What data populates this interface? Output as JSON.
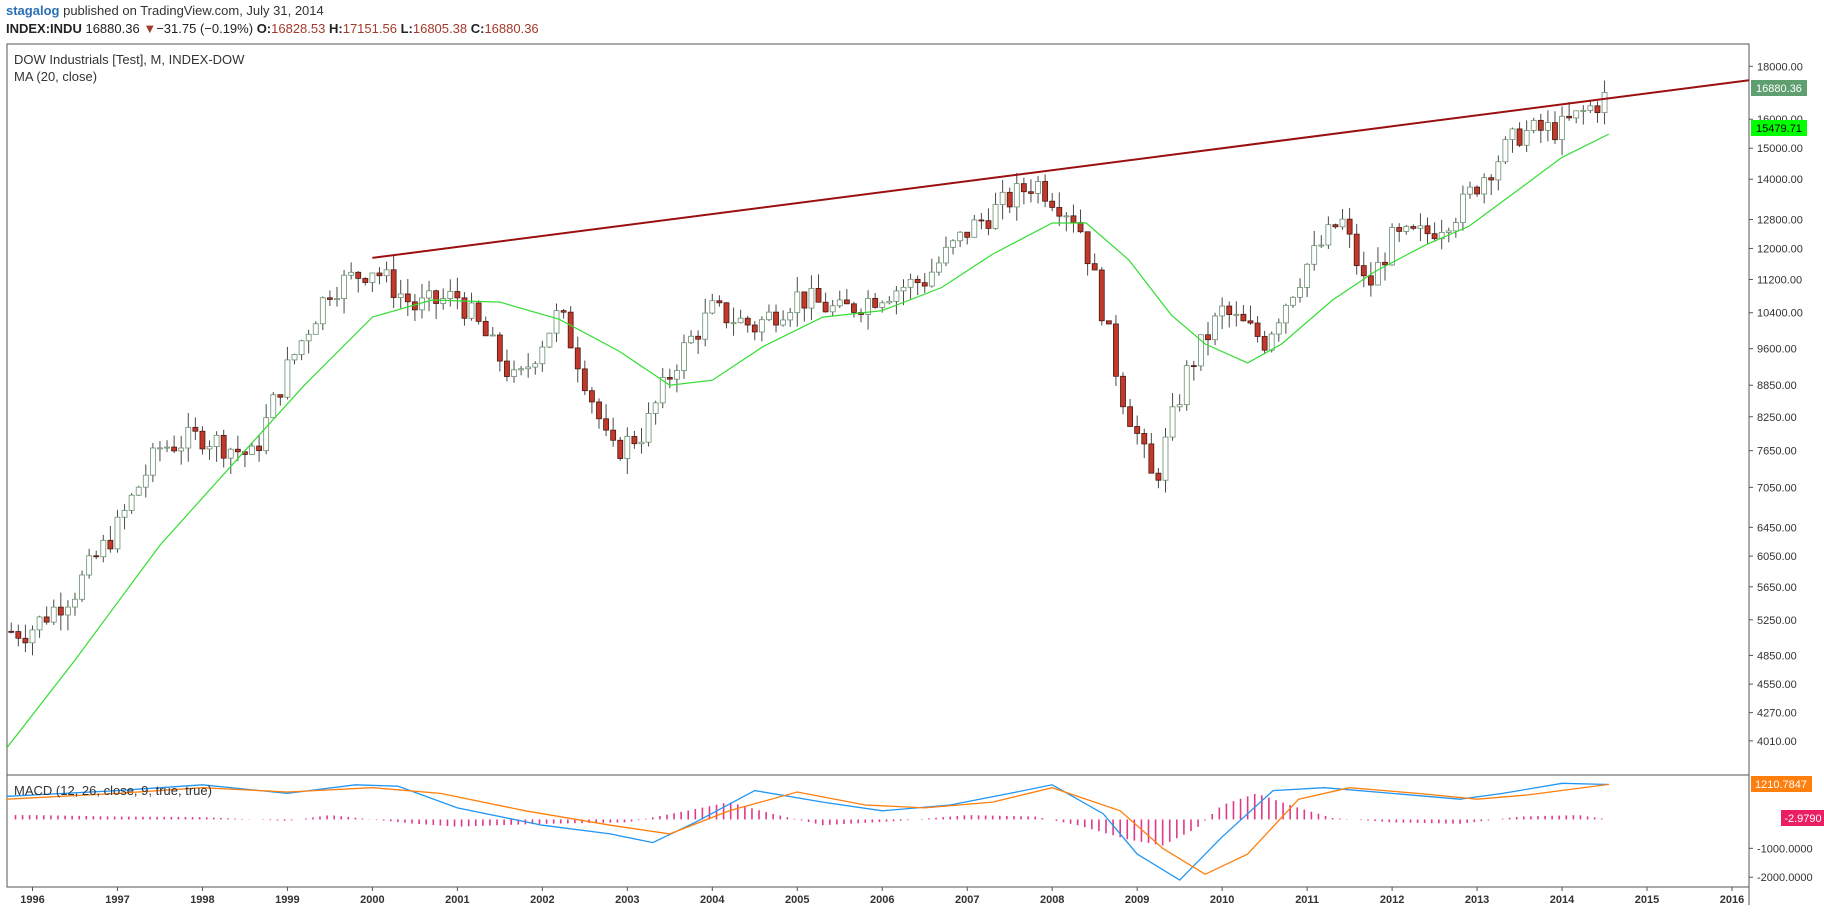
{
  "header": {
    "user": "stagalog",
    "published": "published on TradingView.com, July 31, 2014",
    "symbol": "INDEX:INDU",
    "last": "16880.36",
    "down_arrow": "▼",
    "change": "−31.75 (−0.19%)",
    "o_label": "O:",
    "o_value": "16828.53",
    "h_label": "H:",
    "h_value": "17151.56",
    "l_label": "L:",
    "l_value": "16805.38",
    "c_label": "C:",
    "c_value": "16880.36"
  },
  "legend": {
    "main": "DOW Industrials [Test], M, INDEX-DOW",
    "ma": "MA (20, close)",
    "macd": "MACD (12, 26, close, 9, true, true)"
  },
  "badges": {
    "last_price": "16880.36",
    "ma_value": "15479.71",
    "macd_value": "1210.7847",
    "hist_value": "-2.9790"
  },
  "colors": {
    "up_body": "#ffffff",
    "down_body": "#c0392b",
    "candle_outline": "#6b8f70",
    "ma_line": "#33dd33",
    "trend_line": "#9b0f10",
    "macd_line": "#2196f3",
    "signal_line": "#ff7f0e",
    "histogram": "#e0388b",
    "last_badge": "#5e9e6f",
    "ma_badge": "#00ff00",
    "macd_badge": "#ff7f0e",
    "hist_badge": "#e91e63"
  },
  "chart_data": [
    {
      "type": "candlestick",
      "interval": "M",
      "price_axis_ticks": [
        "18000.00",
        "16000.00",
        "15000.00",
        "14000.00",
        "12800.00",
        "12000.00",
        "11200.00",
        "10400.00",
        "9600.00",
        "8850.00",
        "8250.00",
        "7650.00",
        "7050.00",
        "6450.00",
        "6050.00",
        "5650.00",
        "5250.00",
        "4850.00",
        "4550.00",
        "4270.00",
        "4010.00"
      ],
      "x_axis_ticks": [
        "1996",
        "1997",
        "1998",
        "1999",
        "2000",
        "2001",
        "2002",
        "2003",
        "2004",
        "2005",
        "2006",
        "2007",
        "2008",
        "2009",
        "2010",
        "2011",
        "2012",
        "2013",
        "2014",
        "2015",
        "2016"
      ],
      "scale": "log",
      "ylim": [
        3800,
        18500
      ],
      "xlim": [
        1995.7,
        2016.2
      ],
      "candles_yearly_approx": [
        {
          "t": 1995.95,
          "close": 5117
        },
        {
          "t": 1996.5,
          "close": 5600
        },
        {
          "t": 1997.0,
          "close": 6448
        },
        {
          "t": 1997.5,
          "close": 7700
        },
        {
          "t": 1998.0,
          "close": 7906
        },
        {
          "t": 1998.6,
          "close": 7539
        },
        {
          "t": 1999.0,
          "close": 9181
        },
        {
          "t": 1999.5,
          "close": 10970
        },
        {
          "t": 2000.0,
          "close": 11497
        },
        {
          "t": 2000.5,
          "close": 10520
        },
        {
          "t": 2001.0,
          "close": 10787
        },
        {
          "t": 2001.7,
          "close": 8847
        },
        {
          "t": 2002.2,
          "close": 10403
        },
        {
          "t": 2002.8,
          "close": 7592
        },
        {
          "t": 2003.2,
          "close": 7992
        },
        {
          "t": 2003.6,
          "close": 9415
        },
        {
          "t": 2004.0,
          "close": 10453
        },
        {
          "t": 2004.5,
          "close": 10080
        },
        {
          "t": 2005.0,
          "close": 10783
        },
        {
          "t": 2005.5,
          "close": 10420
        },
        {
          "t": 2006.0,
          "close": 10864
        },
        {
          "t": 2006.5,
          "close": 11200
        },
        {
          "t": 2007.0,
          "close": 12463
        },
        {
          "t": 2007.8,
          "close": 13930
        },
        {
          "t": 2008.3,
          "close": 12800
        },
        {
          "t": 2008.8,
          "close": 8776
        },
        {
          "t": 2009.2,
          "close": 7062
        },
        {
          "t": 2009.6,
          "close": 9171
        },
        {
          "t": 2010.0,
          "close": 10428
        },
        {
          "t": 2010.5,
          "close": 9774
        },
        {
          "t": 2011.0,
          "close": 11577
        },
        {
          "t": 2011.4,
          "close": 12810
        },
        {
          "t": 2011.7,
          "close": 10913
        },
        {
          "t": 2012.0,
          "close": 12218
        },
        {
          "t": 2012.4,
          "close": 12393
        },
        {
          "t": 2012.8,
          "close": 13096
        },
        {
          "t": 2013.0,
          "close": 13860
        },
        {
          "t": 2013.5,
          "close": 15500
        },
        {
          "t": 2014.0,
          "close": 15699
        },
        {
          "t": 2014.55,
          "close": 16880
        }
      ],
      "ma20_approx": [
        {
          "t": 1995.7,
          "v": 3950
        },
        {
          "t": 1996.5,
          "v": 4800
        },
        {
          "t": 1997.5,
          "v": 6200
        },
        {
          "t": 1998.5,
          "v": 7650
        },
        {
          "t": 1999.2,
          "v": 8850
        },
        {
          "t": 2000.0,
          "v": 10300
        },
        {
          "t": 2000.7,
          "v": 10700
        },
        {
          "t": 2001.5,
          "v": 10650
        },
        {
          "t": 2002.2,
          "v": 10250
        },
        {
          "t": 2002.9,
          "v": 9550
        },
        {
          "t": 2003.5,
          "v": 8850
        },
        {
          "t": 2004.0,
          "v": 8950
        },
        {
          "t": 2004.6,
          "v": 9650
        },
        {
          "t": 2005.3,
          "v": 10300
        },
        {
          "t": 2006.0,
          "v": 10450
        },
        {
          "t": 2006.7,
          "v": 11000
        },
        {
          "t": 2007.3,
          "v": 11850
        },
        {
          "t": 2008.0,
          "v": 12700
        },
        {
          "t": 2008.4,
          "v": 12700
        },
        {
          "t": 2008.9,
          "v": 11700
        },
        {
          "t": 2009.4,
          "v": 10350
        },
        {
          "t": 2009.8,
          "v": 9700
        },
        {
          "t": 2010.3,
          "v": 9300
        },
        {
          "t": 2010.7,
          "v": 9700
        },
        {
          "t": 2011.3,
          "v": 10700
        },
        {
          "t": 2011.8,
          "v": 11400
        },
        {
          "t": 2012.4,
          "v": 12100
        },
        {
          "t": 2012.9,
          "v": 12600
        },
        {
          "t": 2013.5,
          "v": 13700
        },
        {
          "t": 2014.0,
          "v": 14700
        },
        {
          "t": 2014.55,
          "v": 15480
        }
      ],
      "trend_line": [
        {
          "t": 2000.0,
          "v": 11750
        },
        {
          "t": 2016.2,
          "v": 17450
        }
      ]
    },
    {
      "type": "macd",
      "y_axis_ticks": [
        "-1000.0000",
        "-2000.0000"
      ],
      "ylim": [
        -2200,
        1400
      ],
      "macd_line_approx": [
        {
          "t": 1995.7,
          "v": 800
        },
        {
          "t": 1997.0,
          "v": 1000
        },
        {
          "t": 1998.0,
          "v": 1200
        },
        {
          "t": 1999.0,
          "v": 900
        },
        {
          "t": 1999.8,
          "v": 1200
        },
        {
          "t": 2000.3,
          "v": 1150
        },
        {
          "t": 2001.0,
          "v": 400
        },
        {
          "t": 2002.0,
          "v": -200
        },
        {
          "t": 2002.8,
          "v": -500
        },
        {
          "t": 2003.3,
          "v": -800
        },
        {
          "t": 2003.8,
          "v": -100
        },
        {
          "t": 2004.5,
          "v": 1000
        },
        {
          "t": 2005.3,
          "v": 600
        },
        {
          "t": 2006.0,
          "v": 300
        },
        {
          "t": 2006.8,
          "v": 500
        },
        {
          "t": 2007.5,
          "v": 900
        },
        {
          "t": 2008.0,
          "v": 1200
        },
        {
          "t": 2008.6,
          "v": 200
        },
        {
          "t": 2009.0,
          "v": -1200
        },
        {
          "t": 2009.5,
          "v": -2100
        },
        {
          "t": 2010.0,
          "v": -600
        },
        {
          "t": 2010.6,
          "v": 1000
        },
        {
          "t": 2011.2,
          "v": 1100
        },
        {
          "t": 2012.0,
          "v": 900
        },
        {
          "t": 2012.8,
          "v": 700
        },
        {
          "t": 2013.3,
          "v": 900
        },
        {
          "t": 2014.0,
          "v": 1250
        },
        {
          "t": 2014.55,
          "v": 1211
        }
      ],
      "signal_line_approx": [
        {
          "t": 1995.7,
          "v": 700
        },
        {
          "t": 1997.0,
          "v": 900
        },
        {
          "t": 1998.0,
          "v": 1100
        },
        {
          "t": 1999.0,
          "v": 950
        },
        {
          "t": 2000.0,
          "v": 1100
        },
        {
          "t": 2000.8,
          "v": 900
        },
        {
          "t": 2001.8,
          "v": 300
        },
        {
          "t": 2002.8,
          "v": -200
        },
        {
          "t": 2003.5,
          "v": -500
        },
        {
          "t": 2004.2,
          "v": 300
        },
        {
          "t": 2005.0,
          "v": 950
        },
        {
          "t": 2005.8,
          "v": 500
        },
        {
          "t": 2006.5,
          "v": 400
        },
        {
          "t": 2007.3,
          "v": 600
        },
        {
          "t": 2008.0,
          "v": 1100
        },
        {
          "t": 2008.8,
          "v": 300
        },
        {
          "t": 2009.3,
          "v": -1000
        },
        {
          "t": 2009.8,
          "v": -1900
        },
        {
          "t": 2010.3,
          "v": -1200
        },
        {
          "t": 2010.9,
          "v": 700
        },
        {
          "t": 2011.5,
          "v": 1100
        },
        {
          "t": 2012.3,
          "v": 900
        },
        {
          "t": 2013.0,
          "v": 700
        },
        {
          "t": 2013.6,
          "v": 850
        },
        {
          "t": 2014.55,
          "v": 1214
        }
      ],
      "histogram_approx": [
        {
          "t": 1996.0,
          "v": 150
        },
        {
          "t": 1997.0,
          "v": 100
        },
        {
          "t": 1998.0,
          "v": 80
        },
        {
          "t": 1999.0,
          "v": -50
        },
        {
          "t": 1999.5,
          "v": 150
        },
        {
          "t": 2000.5,
          "v": -150
        },
        {
          "t": 2001.0,
          "v": -250
        },
        {
          "t": 2002.0,
          "v": -150
        },
        {
          "t": 2003.0,
          "v": -100
        },
        {
          "t": 2003.7,
          "v": 300
        },
        {
          "t": 2004.2,
          "v": 600
        },
        {
          "t": 2004.7,
          "v": 200
        },
        {
          "t": 2005.3,
          "v": -200
        },
        {
          "t": 2006.2,
          "v": -50
        },
        {
          "t": 2007.0,
          "v": 150
        },
        {
          "t": 2007.8,
          "v": 100
        },
        {
          "t": 2008.3,
          "v": -200
        },
        {
          "t": 2008.9,
          "v": -700
        },
        {
          "t": 2009.3,
          "v": -900
        },
        {
          "t": 2009.7,
          "v": -300
        },
        {
          "t": 2010.0,
          "v": 500
        },
        {
          "t": 2010.4,
          "v": 900
        },
        {
          "t": 2010.9,
          "v": 400
        },
        {
          "t": 2011.3,
          "v": 50
        },
        {
          "t": 2012.0,
          "v": -100
        },
        {
          "t": 2012.8,
          "v": -150
        },
        {
          "t": 2013.5,
          "v": 100
        },
        {
          "t": 2014.2,
          "v": 150
        },
        {
          "t": 2014.55,
          "v": -3
        }
      ]
    }
  ]
}
